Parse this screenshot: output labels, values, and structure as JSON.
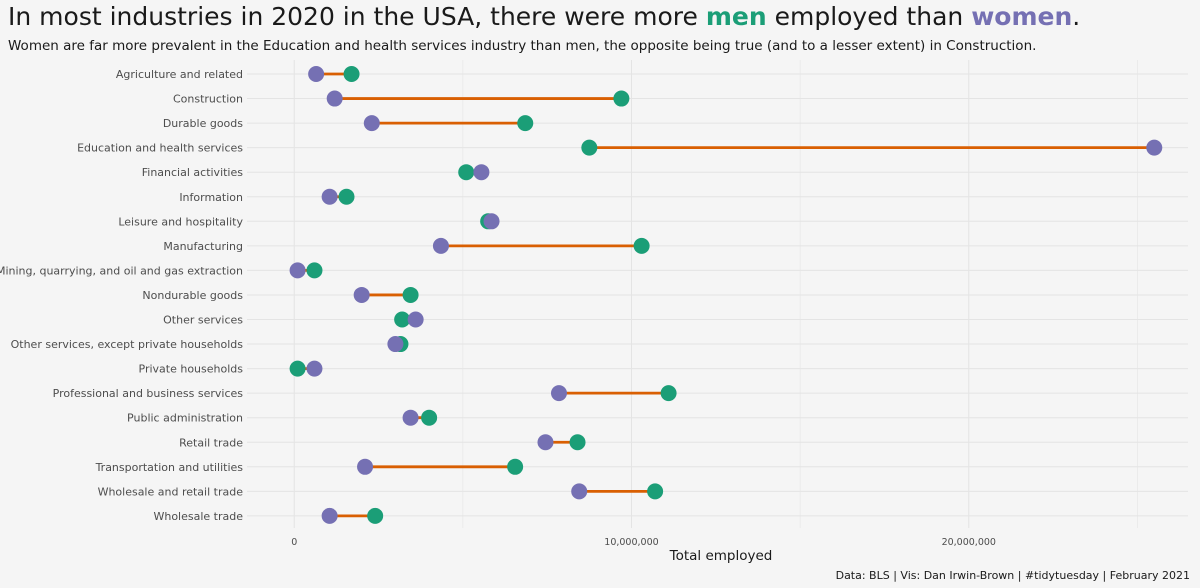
{
  "title": {
    "before": "In most industries in 2020 in the USA, there were more ",
    "men": "men",
    "middle": " employed than ",
    "women": "women",
    "after": "."
  },
  "subtitle": "Women are far more prevalent in the Education and health services industry than men, the opposite being true (and to a lesser extent) in Construction.",
  "caption": "Data: BLS | Vis: Dan Irwin-Brown | #tidytuesday | February 2021",
  "colors": {
    "men": "#1b9e77",
    "women": "#7570b3",
    "segment": "#d95f02",
    "background": "#f5f5f5",
    "grid": "#e4e4e4"
  },
  "chart_data": {
    "type": "dumbbell",
    "xlabel": "Total employed",
    "ylabel": "",
    "xlim": [
      -1400000,
      26500000
    ],
    "xticks": [
      0,
      10000000,
      20000000
    ],
    "xtick_labels": [
      "0",
      "10,000,000",
      "20,000,000"
    ],
    "grid": true,
    "categories": [
      "Agriculture and related",
      "Construction",
      "Durable goods",
      "Education and health services",
      "Financial activities",
      "Information",
      "Leisure and hospitality",
      "Manufacturing",
      "Mining, quarrying, and oil and gas extraction",
      "Nondurable goods",
      "Other services",
      "Other services, except private households",
      "Private households",
      "Professional and business services",
      "Public administration",
      "Retail trade",
      "Transportation and utilities",
      "Wholesale and retail trade",
      "Wholesale trade"
    ],
    "series": [
      {
        "name": "men",
        "values": [
          1700000,
          9700000,
          6850000,
          8750000,
          5100000,
          1550000,
          5750000,
          10300000,
          600000,
          3450000,
          3200000,
          3150000,
          100000,
          11100000,
          4000000,
          8400000,
          6550000,
          10700000,
          2400000
        ]
      },
      {
        "name": "women",
        "values": [
          650000,
          1200000,
          2300000,
          25500000,
          5550000,
          1050000,
          5850000,
          4350000,
          100000,
          2000000,
          3600000,
          3000000,
          600000,
          7850000,
          3450000,
          7450000,
          2100000,
          8450000,
          1050000
        ]
      }
    ]
  }
}
